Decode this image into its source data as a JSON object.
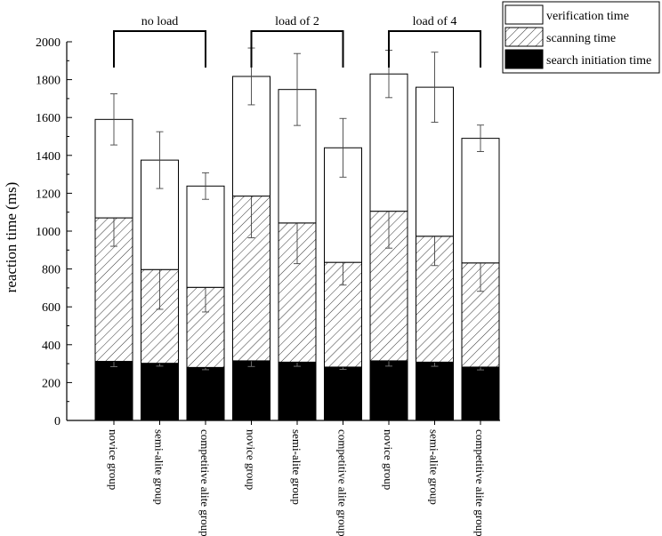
{
  "chart_data": {
    "type": "bar",
    "stacked": true,
    "ylabel": "reaction time (ms)",
    "xlabel": "",
    "ylim": [
      0,
      2000
    ],
    "yticks": [
      0,
      200,
      400,
      600,
      800,
      1000,
      1200,
      1400,
      1600,
      1800,
      2000
    ],
    "categories": [
      "novice group",
      "semi-alite group",
      "competitive alite group",
      "novice group",
      "semi-alite group",
      "competitive alite group",
      "novice group",
      "semi-alite group",
      "competitive alite group"
    ],
    "groups": [
      {
        "label": "no load",
        "start": 0,
        "end": 2
      },
      {
        "label": "load of 2",
        "start": 3,
        "end": 5
      },
      {
        "label": "load of 4",
        "start": 6,
        "end": 8
      }
    ],
    "series": [
      {
        "name": "search initiation time",
        "fill": "solid-black",
        "values": [
          312,
          302,
          280,
          315,
          308,
          282,
          315,
          308,
          282
        ],
        "err": [
          28,
          15,
          12,
          30,
          22,
          12,
          28,
          22,
          15
        ]
      },
      {
        "name": "scanning time",
        "fill": "hatched",
        "values": [
          758,
          495,
          423,
          870,
          735,
          553,
          790,
          665,
          550
        ],
        "err": [
          150,
          210,
          130,
          220,
          215,
          120,
          195,
          155,
          150
        ]
      },
      {
        "name": "verification time",
        "fill": "white",
        "values": [
          520,
          578,
          535,
          632,
          705,
          605,
          725,
          787,
          658
        ],
        "err": [
          135,
          150,
          70,
          150,
          190,
          155,
          125,
          185,
          70
        ]
      }
    ],
    "legend": {
      "placement": "top-right",
      "order": [
        "verification time",
        "scanning time",
        "search initiation time"
      ]
    },
    "grid": false
  }
}
